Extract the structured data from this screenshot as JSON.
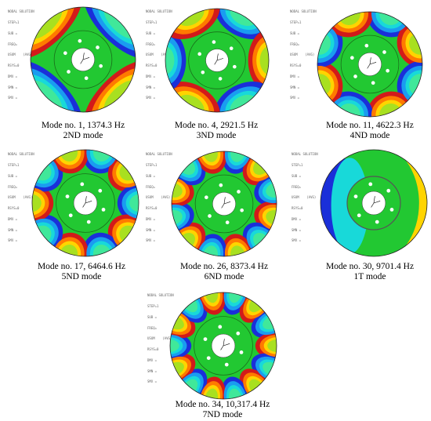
{
  "header_lines": [
    "NODAL SOLUTION",
    "STEP=1",
    "SUB =",
    "FREQ=",
    "USUM    (AVG)",
    "RSYS=0",
    "DMX =",
    "SMN =",
    "SMX ="
  ],
  "panels": [
    {
      "mode_line": "Mode no. 1, 1374.3 Hz",
      "type": "2ND mode",
      "lobes": 2,
      "twist": false
    },
    {
      "mode_line": "Mode no. 4, 2921.5 Hz",
      "type": "3ND mode",
      "lobes": 3,
      "twist": false
    },
    {
      "mode_line": "Mode no. 11, 4622.3 Hz",
      "type": "4ND mode",
      "lobes": 4,
      "twist": false
    },
    {
      "mode_line": "Mode no. 17, 6464.6 Hz",
      "type": "5ND mode",
      "lobes": 5,
      "twist": false
    },
    {
      "mode_line": "Mode no. 26, 8373.4 Hz",
      "type": "6ND mode",
      "lobes": 6,
      "twist": false
    },
    {
      "mode_line": "Mode no. 30, 9701.4 Hz",
      "type": "1T mode",
      "lobes": 1,
      "twist": true
    },
    {
      "mode_line": "Mode no. 34, 10,317.4 Hz",
      "type": "7ND mode",
      "lobes": 7,
      "twist": false
    }
  ],
  "colors": {
    "green": "#22c832",
    "mid": "#00a814",
    "hub_edge": "#1a6d1a"
  }
}
